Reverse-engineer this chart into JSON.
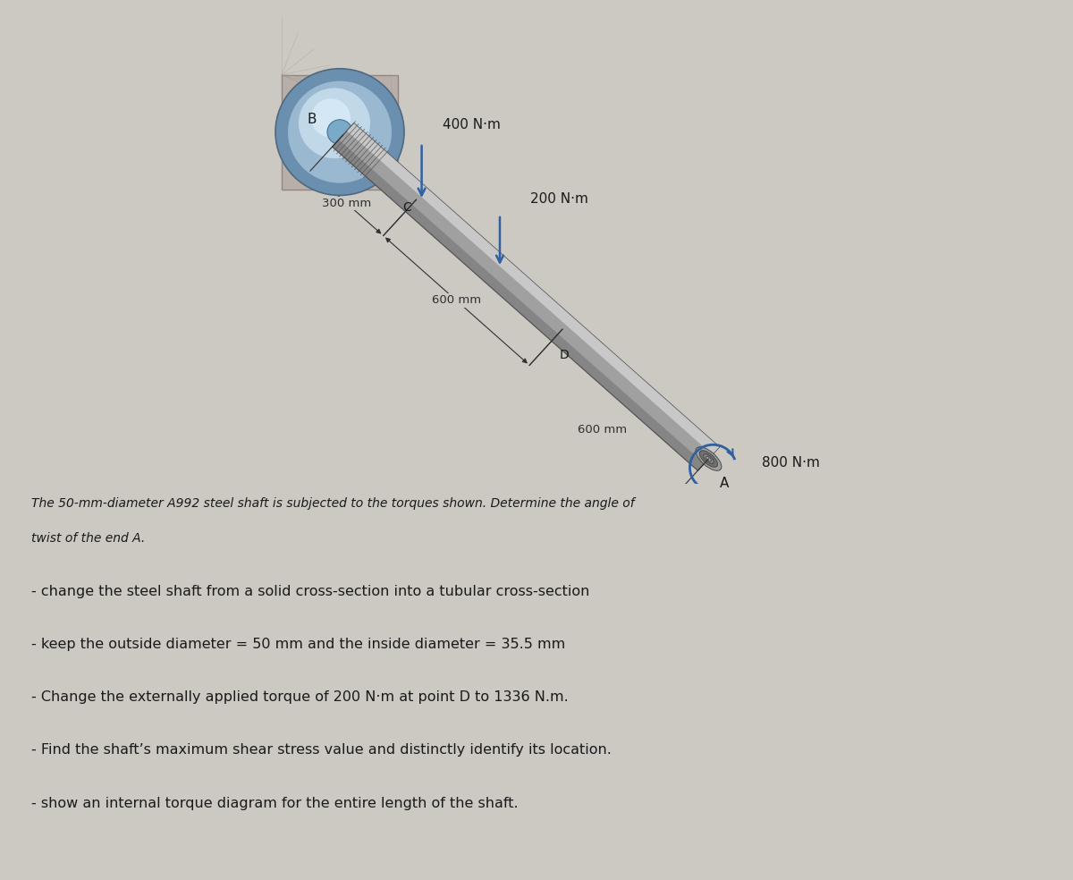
{
  "bg_color": "#ccc8c2",
  "fig_width": 12.0,
  "fig_height": 9.84,
  "dpi": 100,
  "shaft_label_300": "300 mm",
  "shaft_label_600a": "600 mm",
  "shaft_label_600b": "600 mm",
  "torque_400": "400 N·m",
  "torque_200": "200 N·m",
  "torque_800": "800 N·m",
  "point_B": "B",
  "point_C": "C",
  "point_D": "D",
  "point_A": "A",
  "text_line1": "The 50-mm-diameter A992 steel shaft is subjected to the torques shown. Determine the angle of",
  "text_line2": "twist of the end A.",
  "bullet1": "- change the steel shaft from a solid cross-section into a tubular cross-section",
  "bullet2": "- keep the outside diameter = 50 mm and the inside diameter = 35.5 mm",
  "bullet3": "- Change the externally applied torque of 200 N·m at point D to 1336 N.m.",
  "bullet4": "- Find the shaft’s maximum shear stress value and distinctly identify its location.",
  "bullet5": "- show an internal torque diagram for the entire length of the shaft.",
  "wall_bg": "#b8b0a8",
  "wall_shadow": "#a0988f",
  "disc_rim": "#6a8faf",
  "disc_mid": "#9ab8d0",
  "disc_light": "#c0d8e8",
  "disc_highlight": "#d8ecf8",
  "disc_center": "#7aaac8",
  "shaft_dark": "#707070",
  "shaft_mid": "#a0a0a0",
  "shaft_light": "#d0d0d0",
  "shaft_edge": "#484848",
  "thread_color": "#505050",
  "arrow_blue": "#3060a0",
  "dim_color": "#303030",
  "text_color": "#1a1a1a",
  "bullet_color": "#1a1a1a"
}
